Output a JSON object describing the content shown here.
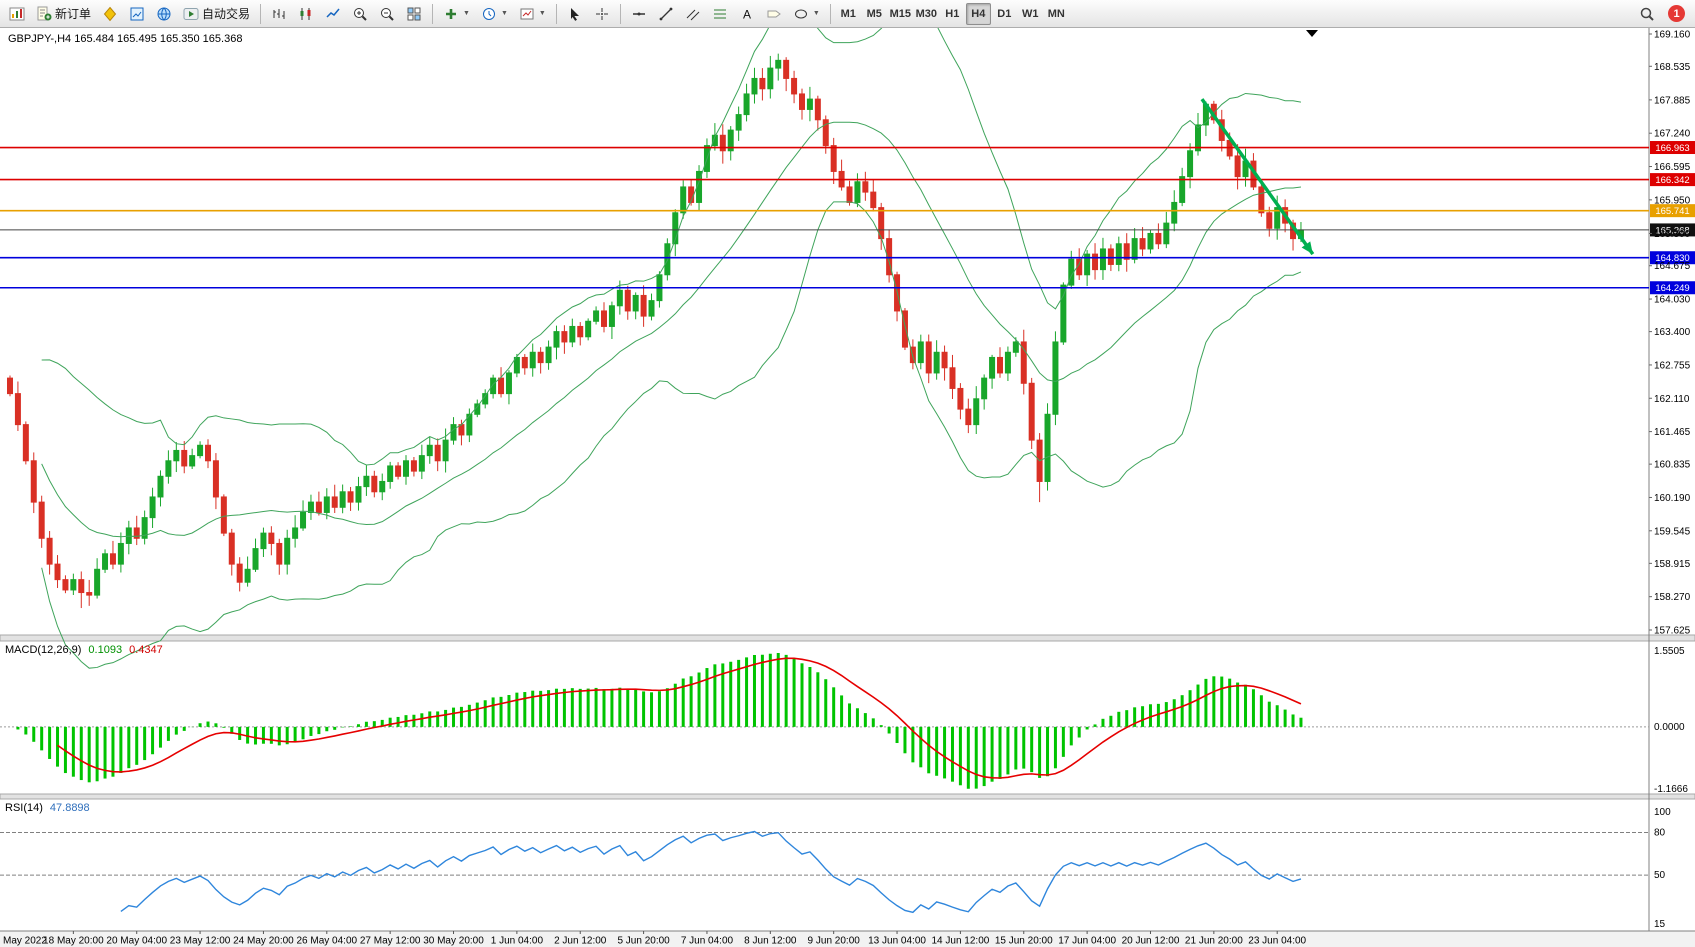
{
  "toolbar": {
    "items": [
      {
        "t": "i",
        "name": "new-chart-button",
        "icon": "chart-window"
      },
      {
        "t": "i",
        "name": "new-order-button",
        "icon": "new-order",
        "label": "新订单"
      },
      {
        "t": "i",
        "name": "metaeditor-button",
        "icon": "editor"
      },
      {
        "t": "i",
        "name": "market-watch-button",
        "icon": "market-watch"
      },
      {
        "t": "i",
        "name": "help-globe-button",
        "icon": "globe"
      },
      {
        "t": "i",
        "name": "autotrading-button",
        "icon": "autotrade",
        "label": "自动交易"
      },
      {
        "t": "s"
      },
      {
        "t": "i",
        "name": "bar-chart-mode-button",
        "icon": "bars"
      },
      {
        "t": "i",
        "name": "candlestick-mode-button",
        "icon": "candles"
      },
      {
        "t": "i",
        "name": "line-chart-mode-button",
        "icon": "line"
      },
      {
        "t": "i",
        "name": "zoom-in-button",
        "icon": "zoom-in"
      },
      {
        "t": "i",
        "name": "zoom-out-button",
        "icon": "zoom-out"
      },
      {
        "t": "i",
        "name": "tile-windows-button",
        "icon": "tile"
      },
      {
        "t": "s"
      },
      {
        "t": "i",
        "name": "indicators-button",
        "icon": "indicators-add",
        "dd": true
      },
      {
        "t": "i",
        "name": "periods-button",
        "icon": "periods",
        "dd": true
      },
      {
        "t": "i",
        "name": "templates-button",
        "icon": "templates",
        "dd": true
      },
      {
        "t": "s"
      },
      {
        "t": "i",
        "name": "cursor-tool-button",
        "icon": "cursor"
      },
      {
        "t": "i",
        "name": "crosshair-tool-button",
        "icon": "crosshair"
      },
      {
        "t": "s"
      },
      {
        "t": "i",
        "name": "hline-tool-button",
        "icon": "hline"
      },
      {
        "t": "i",
        "name": "trendline-tool-button",
        "icon": "trendline"
      },
      {
        "t": "i",
        "name": "channel-tool-button",
        "icon": "channel"
      },
      {
        "t": "i",
        "name": "fibonacci-tool-button",
        "icon": "fibo"
      },
      {
        "t": "i",
        "name": "text-tool-button",
        "icon": "text"
      },
      {
        "t": "i",
        "name": "label-tool-button",
        "icon": "label"
      },
      {
        "t": "i",
        "name": "shapes-tool-button",
        "icon": "shapes",
        "dd": true
      },
      {
        "t": "s"
      },
      {
        "t": "tf"
      },
      {
        "t": "right"
      }
    ],
    "timeframes": [
      "M1",
      "M5",
      "M15",
      "M30",
      "H1",
      "H4",
      "D1",
      "W1",
      "MN"
    ],
    "active_timeframe": "H4",
    "notification_count": "1"
  },
  "chart": {
    "symbol_label": "GBPJPY-,H4 165.484 165.495 165.350 165.368",
    "price_axis": {
      "max": 169.16,
      "min": 157.625,
      "ticks": [
        "169.160",
        "168.535",
        "167.885",
        "167.240",
        "166.595",
        "165.950",
        "165.300",
        "164.675",
        "164.030",
        "163.400",
        "162.755",
        "162.110",
        "161.465",
        "160.835",
        "160.190",
        "159.545",
        "158.915",
        "158.270",
        "157.625"
      ]
    },
    "time_labels": [
      "May 2022",
      "18 May 20:00",
      "20 May 04:00",
      "23 May 12:00",
      "24 May 20:00",
      "26 May 04:00",
      "27 May 12:00",
      "30 May 20:00",
      "1 Jun 04:00",
      "2 Jun 12:00",
      "5 Jun 20:00",
      "7 Jun 04:00",
      "8 Jun 12:00",
      "9 Jun 20:00",
      "13 Jun 04:00",
      "14 Jun 12:00",
      "15 Jun 20:00",
      "17 Jun 04:00",
      "20 Jun 12:00",
      "21 Jun 20:00",
      "23 Jun 04:00"
    ],
    "hlines": [
      {
        "price": 166.963,
        "label": "166.963",
        "color": "#dd0000"
      },
      {
        "price": 166.342,
        "label": "166.342",
        "color": "#dd0000"
      },
      {
        "price": 165.741,
        "label": "165.741",
        "color": "#e8a000"
      },
      {
        "price": 164.83,
        "label": "164.830",
        "color": "#0000dd"
      },
      {
        "price": 164.249,
        "label": "164.249",
        "color": "#0000dd"
      }
    ],
    "current_price": {
      "price": 165.368,
      "label": "165.368",
      "color": "#111111"
    },
    "trend_arrow": {
      "from_index": 150.5,
      "from_price": 167.9,
      "to_index": 164.5,
      "to_price": 164.9,
      "color": "#00b050"
    },
    "colors": {
      "up": "#18a62b",
      "down": "#d93025",
      "bollinger": "#3fa45b",
      "macd_hist": "#00c400",
      "macd_signal": "#e60000",
      "rsi_line": "#2f86dc",
      "grid": "#c0c0c0"
    }
  },
  "chart_data": {
    "type": "candlestick",
    "symbol": "GBPJPY",
    "timeframe": "H4",
    "ohlc_header": {
      "open": "165.484",
      "high": "165.495",
      "low": "165.350",
      "close": "165.368"
    },
    "closes": [
      162.2,
      161.6,
      160.9,
      160.1,
      159.4,
      158.9,
      158.6,
      158.4,
      158.6,
      158.35,
      158.3,
      158.8,
      159.1,
      158.9,
      159.3,
      159.6,
      159.4,
      159.8,
      160.2,
      160.6,
      160.9,
      161.1,
      160.8,
      161.0,
      161.2,
      160.9,
      160.2,
      159.5,
      158.9,
      158.55,
      158.8,
      159.2,
      159.5,
      159.3,
      158.9,
      159.4,
      159.6,
      159.9,
      160.1,
      159.9,
      160.2,
      160.0,
      160.3,
      160.1,
      160.4,
      160.6,
      160.3,
      160.5,
      160.8,
      160.6,
      160.9,
      160.7,
      161.0,
      161.2,
      160.9,
      161.3,
      161.6,
      161.4,
      161.8,
      162.0,
      162.2,
      162.5,
      162.2,
      162.6,
      162.9,
      162.7,
      163.0,
      162.8,
      163.1,
      163.4,
      163.2,
      163.5,
      163.3,
      163.6,
      163.8,
      163.5,
      163.9,
      164.2,
      163.8,
      164.1,
      163.7,
      164.0,
      164.5,
      165.1,
      165.7,
      166.2,
      165.9,
      166.5,
      167.0,
      167.2,
      166.9,
      167.3,
      167.6,
      168.0,
      168.3,
      168.1,
      168.5,
      168.65,
      168.3,
      168.0,
      167.7,
      167.9,
      167.5,
      167.0,
      166.5,
      166.2,
      165.9,
      166.3,
      166.1,
      165.8,
      165.2,
      164.5,
      163.8,
      163.1,
      162.8,
      163.2,
      162.6,
      163.0,
      162.7,
      162.3,
      161.9,
      161.6,
      162.1,
      162.5,
      162.9,
      162.6,
      163.0,
      163.2,
      162.4,
      161.3,
      160.5,
      161.8,
      163.2,
      164.3,
      164.8,
      164.5,
      164.9,
      164.6,
      165.0,
      164.7,
      165.1,
      164.8,
      165.2,
      165.0,
      165.3,
      165.1,
      165.5,
      165.9,
      166.4,
      166.9,
      167.4,
      167.8,
      167.5,
      167.1,
      166.8,
      166.4,
      166.7,
      166.2,
      165.7,
      165.4,
      165.8,
      165.5,
      165.2,
      165.368
    ],
    "wick_overrides": {
      "9": {
        "low": 158.05
      },
      "97": {
        "high": 168.78
      },
      "130": {
        "low": 160.1
      }
    },
    "bollinger": {
      "period": 20,
      "deviation": 2
    },
    "x_label_step": 8
  },
  "macd": {
    "name": "MACD(12,26,9)",
    "main_value": "0.1093",
    "signal_value": "0.4347",
    "fast": 12,
    "slow": 26,
    "signal": 9,
    "scale": {
      "max": 1.5505,
      "min": -1.1666,
      "labels": [
        "1.5505",
        "0.0000",
        "-1.1666"
      ]
    }
  },
  "rsi": {
    "name": "RSI(14)",
    "value_label": "47.8898",
    "period": 14,
    "scale_labels": [
      "100",
      "80",
      "50",
      "15"
    ],
    "scale_max": 100,
    "scale_min": 15,
    "levels": [
      80,
      50
    ]
  }
}
